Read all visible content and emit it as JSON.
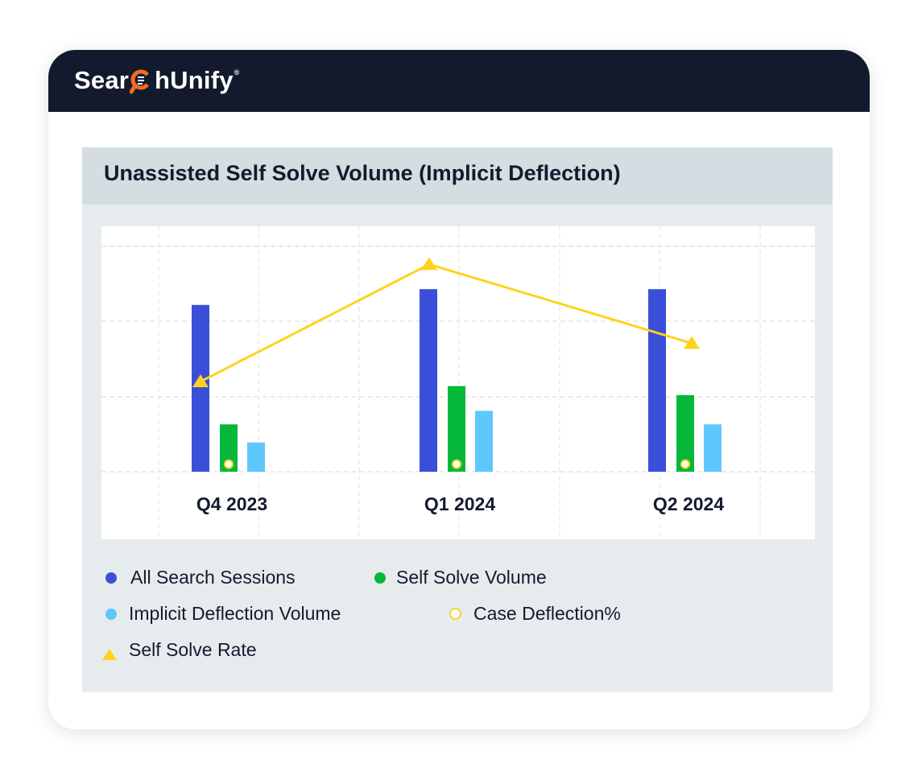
{
  "brand": {
    "name_left": "Sear",
    "name_right": "hUnify",
    "mark": "®"
  },
  "panel": {
    "title": "Unassisted Self Solve Volume (Implicit Deflection)"
  },
  "colors": {
    "header_bg": "#141a2e",
    "all_sessions": "#3a4fd8",
    "self_solve": "#05b83a",
    "implicit_deflection": "#5ec8fc",
    "rate": "#ffd21f",
    "case_deflection": "#ffd21f",
    "accent": "#f26b21"
  },
  "chart_data": {
    "type": "bar",
    "title": "Unassisted Self Solve Volume (Implicit Deflection)",
    "categories": [
      "Q4 2023",
      "Q1 2024",
      "Q2 2024"
    ],
    "ylim": [
      0,
      100
    ],
    "grid": true,
    "series": [
      {
        "name": "All Search Sessions",
        "type": "bar",
        "values": [
          74,
          81,
          81
        ]
      },
      {
        "name": "Self Solve Volume",
        "type": "bar",
        "values": [
          21,
          38,
          34
        ]
      },
      {
        "name": "Implicit Deflection Volume",
        "type": "bar",
        "values": [
          13,
          27,
          21
        ]
      },
      {
        "name": "Case Deflection%",
        "type": "marker",
        "values": [
          3,
          3,
          3
        ]
      },
      {
        "name": "Self Solve Rate",
        "type": "line",
        "values": [
          40,
          92,
          57
        ]
      }
    ],
    "legend": [
      {
        "label": "All Search Sessions",
        "marker": "dot",
        "color": "#3a4fd8"
      },
      {
        "label": "Self Solve Volume",
        "marker": "dot",
        "color": "#05b83a"
      },
      {
        "label": "Implicit Deflection Volume",
        "marker": "dot",
        "color": "#5ec8fc"
      },
      {
        "label": "Case Deflection%",
        "marker": "ring",
        "color": "#ffd21f"
      },
      {
        "label": "Self Solve Rate",
        "marker": "triangle",
        "color": "#ffd21f"
      }
    ]
  }
}
